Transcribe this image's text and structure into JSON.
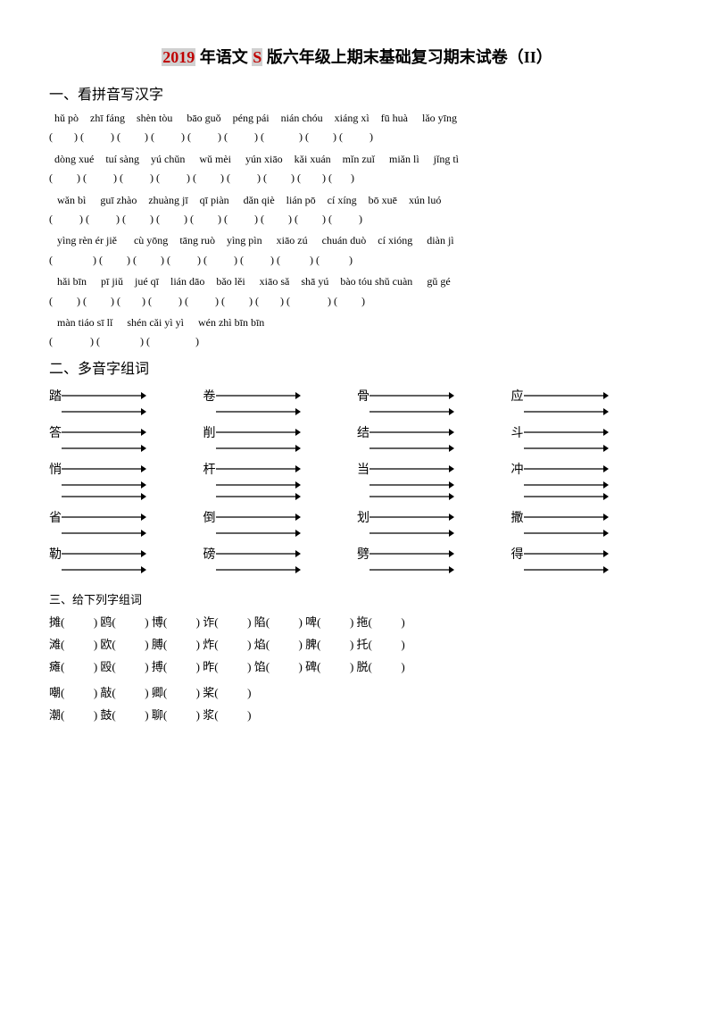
{
  "title_year": "2019",
  "title_rest1": " 年语文 ",
  "title_s": "S",
  "title_rest2": " 版六年级上期末基础复习期末试卷（II）",
  "section1": "一、看拼音写汉字",
  "section2": "二、多音字组词",
  "section3": "三、给下列字组词",
  "pinyin_rows": [
    {
      "py": [
        "  hǔ pò",
        "   zhī fáng",
        "   shèn tòu",
        "    bāo guǒ",
        "   péng pái",
        "   nián chóu",
        "   xiáng xì",
        "   fū huà",
        "    lǎo yīng"
      ],
      "pr": [
        "(        ) ",
        "(          ) ",
        "(         ) ",
        "(          ) ",
        "(          ) ",
        "(          ) ",
        "(             ) ",
        "(         ) ",
        "(          )"
      ]
    },
    {
      "py": [
        "  dòng xué",
        "   tuí sàng",
        "   yú chǔn",
        "    wǔ mèi",
        "    yún xiāo",
        "   kǎi xuán",
        "   mǐn zuǐ",
        "    miǎn lì",
        "    jǐng tì"
      ],
      "pr": [
        "(         ) ",
        "(          ) ",
        "(          ) ",
        "(          ) ",
        "(         ) ",
        "(          ) ",
        "(         ) ",
        "(        ) ",
        "(       )"
      ]
    },
    {
      "py": [
        "   wǎn bì",
        "    guī zhào",
        "   zhuàng jī",
        "   qī piàn",
        "    dǎn qiè",
        "   lián pō",
        "   cí xíng",
        "   bō xuē",
        "   xún luó"
      ],
      "pr": [
        "(          ) ",
        "(          ) ",
        "(         ) ",
        "(         ) ",
        "(         ) ",
        "(          ) ",
        "(         ) ",
        "(         ) ",
        "(          )"
      ]
    },
    {
      "py": [
        "   yìng rèn ér jiě",
        "     cù yōng",
        "   tāng ruò",
        "   yìng pìn",
        "    xiāo zú",
        "    chuán duò",
        "   cí xióng",
        "    diàn jì"
      ],
      "pr": [
        "(               ) ",
        "(         ) ",
        "(         ) ",
        "(          ) ",
        "(          ) ",
        "(          ) ",
        "(           ) ",
        "(           )"
      ]
    },
    {
      "py": [
        "   hǎi bīn",
        "    pī jiǔ",
        "   jué qī",
        "   lián dāo",
        "   bǎo lěi",
        "    xiāo sǎ",
        "   shā yú",
        "   bào tóu shǔ cuàn",
        "    gǔ gé"
      ],
      "pr": [
        "(         ) ",
        "(         ) ",
        "(        ) ",
        "(          ) ",
        "(          ) ",
        "(         ) ",
        "(        ) ",
        "(              ) ",
        "(         )"
      ]
    },
    {
      "py": [
        "   màn tiáo sī lǐ",
        "    shén cǎi yì yì",
        "    wén zhì bīn bīn"
      ],
      "pr": [
        "(              ) ",
        "(               ) ",
        "(                 )"
      ]
    }
  ],
  "duoyin_rows": [
    [
      {
        "char": "踏",
        "lines": 2
      },
      {
        "char": "卷",
        "lines": 2
      },
      {
        "char": "骨",
        "lines": 2
      },
      {
        "char": "应",
        "lines": 2
      }
    ],
    [
      {
        "char": "答",
        "lines": 2
      },
      {
        "char": "削",
        "lines": 2
      },
      {
        "char": "结",
        "lines": 2
      },
      {
        "char": "斗",
        "lines": 2
      }
    ],
    [
      {
        "char": "悄",
        "lines": 3
      },
      {
        "char": "杆",
        "lines": 3
      },
      {
        "char": "当",
        "lines": 3
      },
      {
        "char": "冲",
        "lines": 3
      }
    ],
    [
      {
        "char": "省",
        "lines": 2
      },
      {
        "char": "倒",
        "lines": 2
      },
      {
        "char": "划",
        "lines": 2
      },
      {
        "char": "撒",
        "lines": 2
      }
    ],
    [
      {
        "char": "勒",
        "lines": 2
      },
      {
        "char": "磅",
        "lines": 2
      },
      {
        "char": "劈",
        "lines": 2
      },
      {
        "char": "得",
        "lines": 2
      }
    ]
  ],
  "zuci_rows": [
    [
      "摊(          ) ",
      "鸥(          ) ",
      "博(          ) ",
      "诈(          ) ",
      "陷(          ) ",
      "啤(          ) ",
      "拖(          )"
    ],
    [
      "滩(          ) ",
      "欧(          ) ",
      "膊(          ) ",
      "炸(          ) ",
      "焰(          ) ",
      "脾(          ) ",
      "托(          )"
    ],
    [
      "瘫(          ) ",
      "殴(          ) ",
      "搏(          ) ",
      "昨(          ) ",
      "馅(          ) ",
      "碑(          ) ",
      "脱(          )"
    ]
  ],
  "zuci_rows2": [
    [
      "嘲(          ) ",
      "敲(          ) ",
      "卿(          ) ",
      "桨(          )"
    ],
    [
      "潮(          ) ",
      "鼓(          ) ",
      "聊(          ) ",
      "浆(          )"
    ]
  ]
}
